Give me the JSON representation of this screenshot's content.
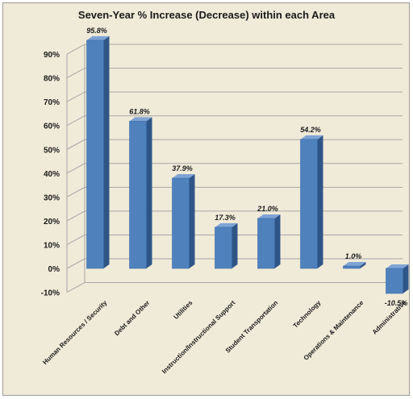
{
  "chart_data": {
    "type": "bar",
    "title": "Seven-Year % Increase (Decrease) within each Area",
    "categories": [
      "Human Resources / Security",
      "Debt and Other",
      "Utilities",
      "Instruction/Instructional Support",
      "Student Transportation",
      "Technology",
      "Operations & Maintenance",
      "Administrative"
    ],
    "values": [
      95.8,
      61.8,
      37.9,
      17.3,
      21.0,
      54.2,
      1.0,
      -10.5
    ],
    "data_labels": [
      "95.8%",
      "61.8%",
      "37.9%",
      "17.3%",
      "21.0%",
      "54.2%",
      "1.0%",
      "-10.5%"
    ],
    "y_ticks": [
      -10,
      0,
      10,
      20,
      30,
      40,
      50,
      60,
      70,
      80,
      90
    ],
    "y_tick_labels": [
      "-10%",
      "0%",
      "10%",
      "20%",
      "30%",
      "40%",
      "50%",
      "60%",
      "70%",
      "80%",
      "90%"
    ],
    "ylim": [
      -10,
      90
    ],
    "grid": true,
    "legend": "none",
    "colors": {
      "bar_front": "#4f81bd",
      "bar_side": "#2f5587",
      "bar_top": "#7fa4d4",
      "background": "#f0ead8",
      "gridline": "#a6a6a6"
    }
  }
}
